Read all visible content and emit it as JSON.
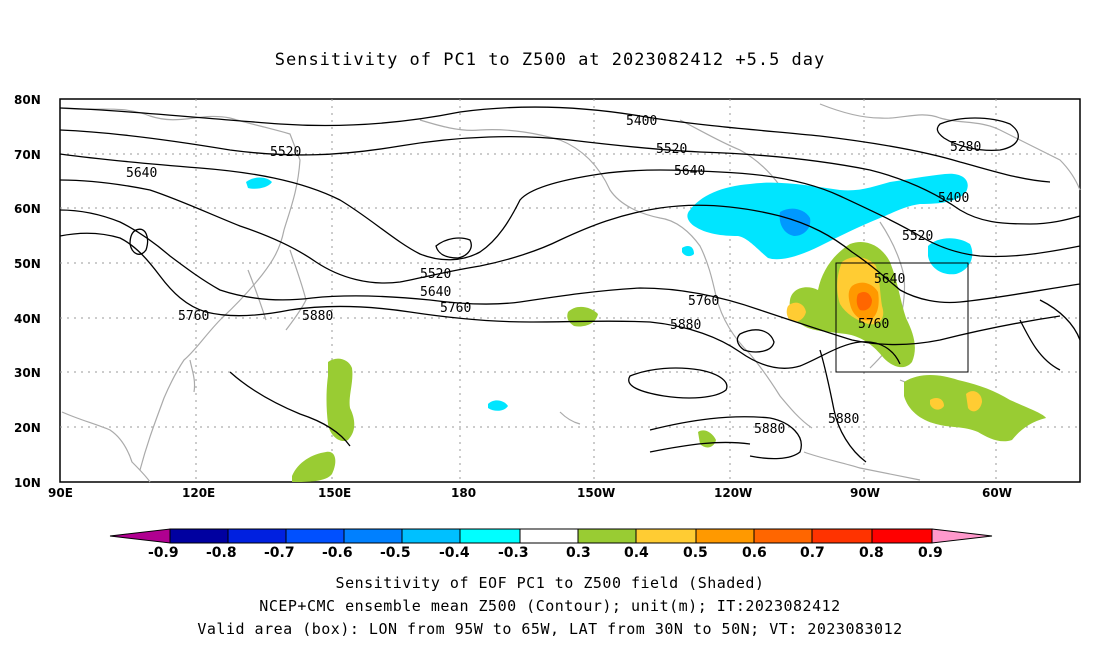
{
  "title": "Sensitivity of PC1 to Z500 at 2023082412 +5.5 day",
  "map": {
    "lat_labels": [
      "80N",
      "70N",
      "60N",
      "50N",
      "40N",
      "30N",
      "20N",
      "10N"
    ],
    "lon_labels": [
      "90E",
      "120E",
      "150E",
      "180",
      "150W",
      "120W",
      "90W",
      "60W"
    ],
    "contour_labels": [
      "5400",
      "5520",
      "5640",
      "5280",
      "5400",
      "5520",
      "5640",
      "5760",
      "5880",
      "5520",
      "5640",
      "5760",
      "5760",
      "5880",
      "5880",
      "5880",
      "5760",
      "5640"
    ],
    "valid_box": {
      "lon_from": "95W",
      "lon_to": "65W",
      "lat_from": "30N",
      "lat_to": "50N"
    }
  },
  "colorbar": {
    "labels": [
      "-0.9",
      "-0.8",
      "-0.7",
      "-0.6",
      "-0.5",
      "-0.4",
      "-0.3",
      "0.3",
      "0.4",
      "0.5",
      "0.6",
      "0.7",
      "0.8",
      "0.9"
    ],
    "colors": [
      "#b00090",
      "#0000a0",
      "#0020e0",
      "#0050ff",
      "#0080ff",
      "#00c0ff",
      "#00ffff",
      "#ffffff",
      "#99cc33",
      "#ffcc33",
      "#ff9900",
      "#ff6600",
      "#ff3300",
      "#ff0000",
      "#ff99cc"
    ]
  },
  "captions": {
    "line1": "Sensitivity of EOF PC1 to Z500 field (Shaded)",
    "line2": "NCEP+CMC ensemble mean Z500 (Contour); unit(m); IT:2023082412",
    "line3": "Valid area (box): LON from 95W to 65W, LAT from 30N to 50N; VT: 2023083012"
  }
}
